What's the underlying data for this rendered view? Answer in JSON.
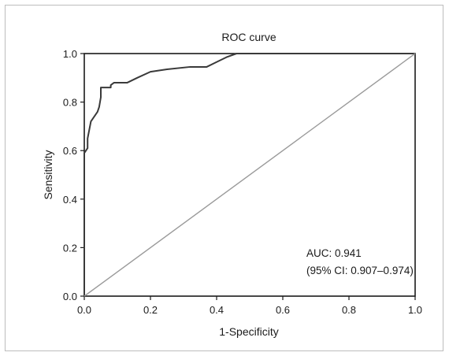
{
  "chart_data": {
    "type": "line",
    "title": "ROC curve",
    "xlabel": "1-Specificity",
    "ylabel": "Sensitivity",
    "xlim": [
      0.0,
      1.0
    ],
    "ylim": [
      0.0,
      1.0
    ],
    "x_ticks": [
      "0.0",
      "0.2",
      "0.4",
      "0.6",
      "0.8",
      "1.0"
    ],
    "y_ticks": [
      "0.0",
      "0.2",
      "0.4",
      "0.6",
      "0.8",
      "1.0"
    ],
    "grid": false,
    "legend": null,
    "series": [
      {
        "color": "#3a3a3a",
        "x": [
          0.0,
          0.0,
          0.01,
          0.01,
          0.02,
          0.04,
          0.045,
          0.05,
          0.05,
          0.08,
          0.08,
          0.09,
          0.13,
          0.16,
          0.2,
          0.25,
          0.32,
          0.37,
          0.4,
          0.43,
          0.46,
          1.0
        ],
        "y": [
          0.0,
          0.59,
          0.61,
          0.65,
          0.72,
          0.76,
          0.78,
          0.82,
          0.86,
          0.86,
          0.87,
          0.88,
          0.88,
          0.9,
          0.925,
          0.935,
          0.945,
          0.945,
          0.965,
          0.985,
          1.0,
          1.0
        ]
      },
      {
        "color": "#9a9a9a",
        "x": [
          0.0,
          1.0
        ],
        "y": [
          0.0,
          1.0
        ]
      }
    ],
    "annotations": [
      "AUC: 0.941",
      "(95% CI: 0.907–0.974)"
    ]
  }
}
